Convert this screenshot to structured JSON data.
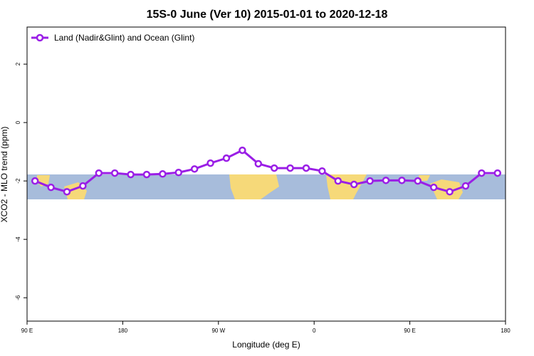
{
  "chart_data": {
    "type": "line",
    "title": "15S-0 June (Ver 10)   2015-01-01 to 2020-12-18",
    "x_label": "Longitude (deg E)",
    "y_label": "XCO2 - MLO trend (ppm)",
    "x": [
      97.5,
      112.5,
      127.5,
      142.5,
      157.5,
      172.5,
      187.5,
      202.5,
      217.5,
      232.5,
      247.5,
      262.5,
      277.5,
      292.5,
      307.5,
      322.5,
      337.5,
      352.5,
      367.5,
      382.5,
      397.5,
      412.5,
      427.5,
      442.5,
      457.5,
      472.5,
      487.5,
      502.5,
      517.5,
      532.5
    ],
    "series": [
      {
        "name": "Land (Nadir&Glint) and Ocean (Glint)",
        "color": "#9a1ee6",
        "values": [
          -2.0,
          -2.22,
          -2.37,
          -2.17,
          -1.73,
          -1.73,
          -1.78,
          -1.78,
          -1.76,
          -1.71,
          -1.59,
          -1.39,
          -1.22,
          -0.95,
          -1.41,
          -1.56,
          -1.56,
          -1.56,
          -1.66,
          -2.0,
          -2.12,
          -2.0,
          -1.98,
          -1.98,
          -2.0,
          -2.22,
          -2.37,
          -2.17,
          -1.73,
          -1.73
        ]
      }
    ],
    "xlim": [
      90,
      540
    ],
    "xticks": [
      {
        "value": 90,
        "label": "90 E"
      },
      {
        "value": 180,
        "label": "180"
      },
      {
        "value": 270,
        "label": "90 W"
      },
      {
        "value": 360,
        "label": "0"
      },
      {
        "value": 450,
        "label": "90 E"
      },
      {
        "value": 540,
        "label": "180"
      }
    ],
    "ylim": [
      -6.8,
      3.27
    ],
    "yticks": [
      2,
      0,
      -2,
      -4,
      -6
    ],
    "legend": "top-left"
  }
}
